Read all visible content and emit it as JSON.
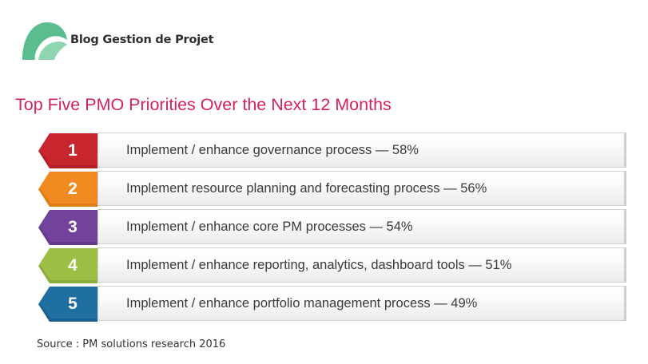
{
  "brand": {
    "name": "Blog Gestion de Projet",
    "logo_icon": "green-leaf-logo-icon",
    "logo_color": "#5bbd8e"
  },
  "title": "Top Five PMO Priorities Over the Next 12 Months",
  "title_color": "#d3225a",
  "priorities": [
    {
      "rank": "1",
      "text": "Implement / enhance governance process — 58%",
      "color": "#c8262e",
      "shade": "#9e1b22"
    },
    {
      "rank": "2",
      "text": "Implement resource planning and forecasting process — 56%",
      "color": "#f18a21",
      "shade": "#c96c12"
    },
    {
      "rank": "3",
      "text": "Implement / enhance core PM processes — 54%",
      "color": "#72439a",
      "shade": "#56307a"
    },
    {
      "rank": "4",
      "text": "Implement / enhance reporting, analytics, dashboard tools — 51%",
      "color": "#9cbf45",
      "shade": "#7a9a30"
    },
    {
      "rank": "5",
      "text": "Implement / enhance portfolio management process — 49%",
      "color": "#1f6fa0",
      "shade": "#14507a"
    }
  ],
  "source": "Source : PM solutions research 2016"
}
